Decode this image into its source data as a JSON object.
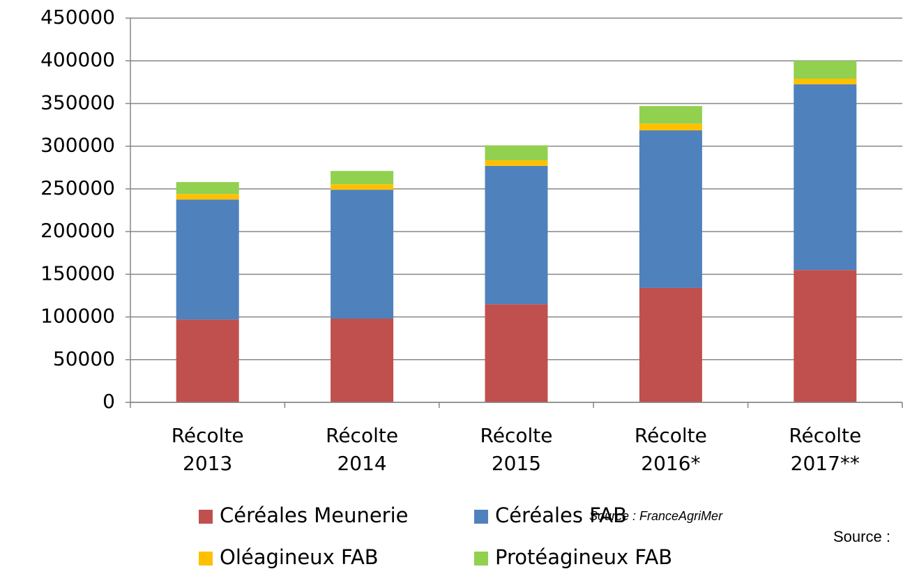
{
  "chart_data": {
    "type": "stacked_bar",
    "categories": [
      "Récolte 2013",
      "Récolte 2014",
      "Récolte 2015",
      "Récolte 2016*",
      "Récolte 2017**"
    ],
    "series": [
      {
        "name": "Céréales Meunerie",
        "color": "#c0504d",
        "values": [
          97000,
          98000,
          115000,
          134000,
          155000
        ]
      },
      {
        "name": "Céréales FAB",
        "color": "#4f81bd",
        "values": [
          140500,
          151000,
          162000,
          184500,
          217500
        ]
      },
      {
        "name": "Oléagineux FAB",
        "color": "#ffc000",
        "values": [
          6500,
          6500,
          6500,
          8000,
          6500
        ]
      },
      {
        "name": "Protéagineux FAB",
        "color": "#92d050",
        "values": [
          14000,
          15500,
          17500,
          20500,
          21000
        ]
      }
    ],
    "ylim": [
      0,
      450000
    ],
    "yticks": [
      0,
      50000,
      100000,
      150000,
      200000,
      250000,
      300000,
      350000,
      400000,
      450000
    ],
    "grid": true,
    "annotations": [
      "Source : FranceAgriMer",
      "Source :"
    ]
  }
}
